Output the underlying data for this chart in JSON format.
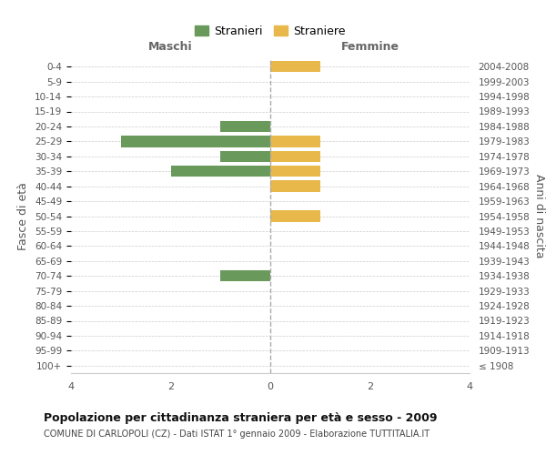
{
  "age_groups": [
    "100+",
    "95-99",
    "90-94",
    "85-89",
    "80-84",
    "75-79",
    "70-74",
    "65-69",
    "60-64",
    "55-59",
    "50-54",
    "45-49",
    "40-44",
    "35-39",
    "30-34",
    "25-29",
    "20-24",
    "15-19",
    "10-14",
    "5-9",
    "0-4"
  ],
  "birth_years": [
    "≤ 1908",
    "1909-1913",
    "1914-1918",
    "1919-1923",
    "1924-1928",
    "1929-1933",
    "1934-1938",
    "1939-1943",
    "1944-1948",
    "1949-1953",
    "1954-1958",
    "1959-1963",
    "1964-1968",
    "1969-1973",
    "1974-1978",
    "1979-1983",
    "1984-1988",
    "1989-1993",
    "1994-1998",
    "1999-2003",
    "2004-2008"
  ],
  "maschi": [
    0,
    0,
    0,
    0,
    0,
    0,
    1,
    0,
    0,
    0,
    0,
    0,
    0,
    2,
    1,
    3,
    1,
    0,
    0,
    0,
    0
  ],
  "femmine": [
    0,
    0,
    0,
    0,
    0,
    0,
    0,
    0,
    0,
    0,
    1,
    0,
    1,
    1,
    1,
    1,
    0,
    0,
    0,
    0,
    1
  ],
  "color_maschi": "#6a9a5b",
  "color_femmine": "#e8b84b",
  "xlim": 4,
  "title": "Popolazione per cittadinanza straniera per età e sesso - 2009",
  "subtitle": "COMUNE DI CARLOPOLI (CZ) - Dati ISTAT 1° gennaio 2009 - Elaborazione TUTTITALIA.IT",
  "ylabel_left": "Fasce di età",
  "ylabel_right": "Anni di nascita",
  "legend_maschi": "Stranieri",
  "legend_femmine": "Straniere",
  "label_maschi": "Maschi",
  "label_femmine": "Femmine",
  "bg_color": "#ffffff",
  "grid_color": "#cccccc",
  "bar_height": 0.75
}
